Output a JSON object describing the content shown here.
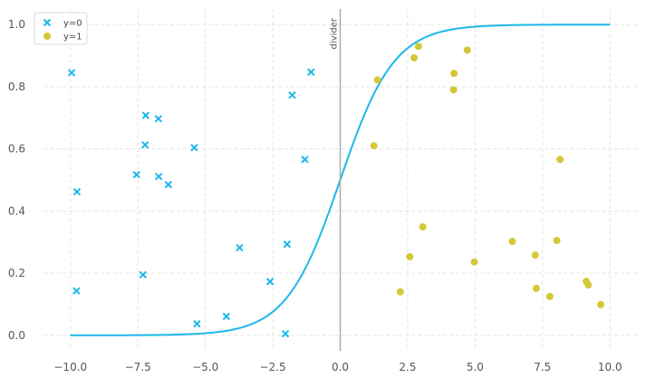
{
  "chart_data": {
    "type": "scatter",
    "xlim": [
      -11.0,
      11.0
    ],
    "ylim": [
      -0.05,
      1.05
    ],
    "x_ticks": [
      -10.0,
      -7.5,
      -5.0,
      -2.5,
      0.0,
      2.5,
      5.0,
      7.5,
      10.0
    ],
    "x_tick_labels": [
      "−10.0",
      "−7.5",
      "−5.0",
      "−2.5",
      "0.0",
      "2.5",
      "5.0",
      "7.5",
      "10.0"
    ],
    "y_ticks": [
      0.0,
      0.2,
      0.4,
      0.6,
      0.8,
      1.0
    ],
    "y_tick_labels": [
      "0.0",
      "0.2",
      "0.4",
      "0.6",
      "0.8",
      "1.0"
    ],
    "grid": true,
    "legend_position": "top-left",
    "series": [
      {
        "name": "y=0",
        "marker": "x",
        "color": "#1bb8e8",
        "points": [
          [
            -9.96,
            0.845
          ],
          [
            -9.76,
            0.462
          ],
          [
            -9.78,
            0.143
          ],
          [
            -7.21,
            0.708
          ],
          [
            -6.74,
            0.697
          ],
          [
            -7.23,
            0.613
          ],
          [
            -7.55,
            0.517
          ],
          [
            -6.73,
            0.511
          ],
          [
            -6.37,
            0.485
          ],
          [
            -5.41,
            0.604
          ],
          [
            -7.31,
            0.195
          ],
          [
            -5.31,
            0.037
          ],
          [
            -4.22,
            0.061
          ],
          [
            -3.73,
            0.282
          ],
          [
            -2.6,
            0.173
          ],
          [
            -1.97,
            0.293
          ],
          [
            -2.03,
            0.005
          ],
          [
            -1.78,
            0.773
          ],
          [
            -1.31,
            0.566
          ],
          [
            -1.08,
            0.847
          ]
        ]
      },
      {
        "name": "y=1",
        "marker": "o",
        "color": "#d4c83a",
        "points": [
          [
            1.38,
            0.822
          ],
          [
            1.25,
            0.61
          ],
          [
            2.74,
            0.893
          ],
          [
            2.9,
            0.93
          ],
          [
            4.22,
            0.843
          ],
          [
            4.2,
            0.79
          ],
          [
            4.71,
            0.918
          ],
          [
            2.58,
            0.253
          ],
          [
            3.06,
            0.349
          ],
          [
            2.23,
            0.14
          ],
          [
            4.97,
            0.236
          ],
          [
            6.38,
            0.302
          ],
          [
            7.23,
            0.258
          ],
          [
            7.27,
            0.151
          ],
          [
            7.77,
            0.125
          ],
          [
            8.03,
            0.305
          ],
          [
            8.15,
            0.566
          ],
          [
            9.12,
            0.174
          ],
          [
            9.2,
            0.162
          ],
          [
            9.66,
            0.099
          ]
        ]
      }
    ],
    "curve": {
      "type": "sigmoid",
      "color": "#1bb8e8",
      "x_range": [
        -10.0,
        10.0
      ],
      "slope": 1.0,
      "center": 0.0
    },
    "annotations": [
      {
        "type": "vline",
        "x": 0.0,
        "label": "divider",
        "color": "#aaaaaa"
      }
    ]
  }
}
